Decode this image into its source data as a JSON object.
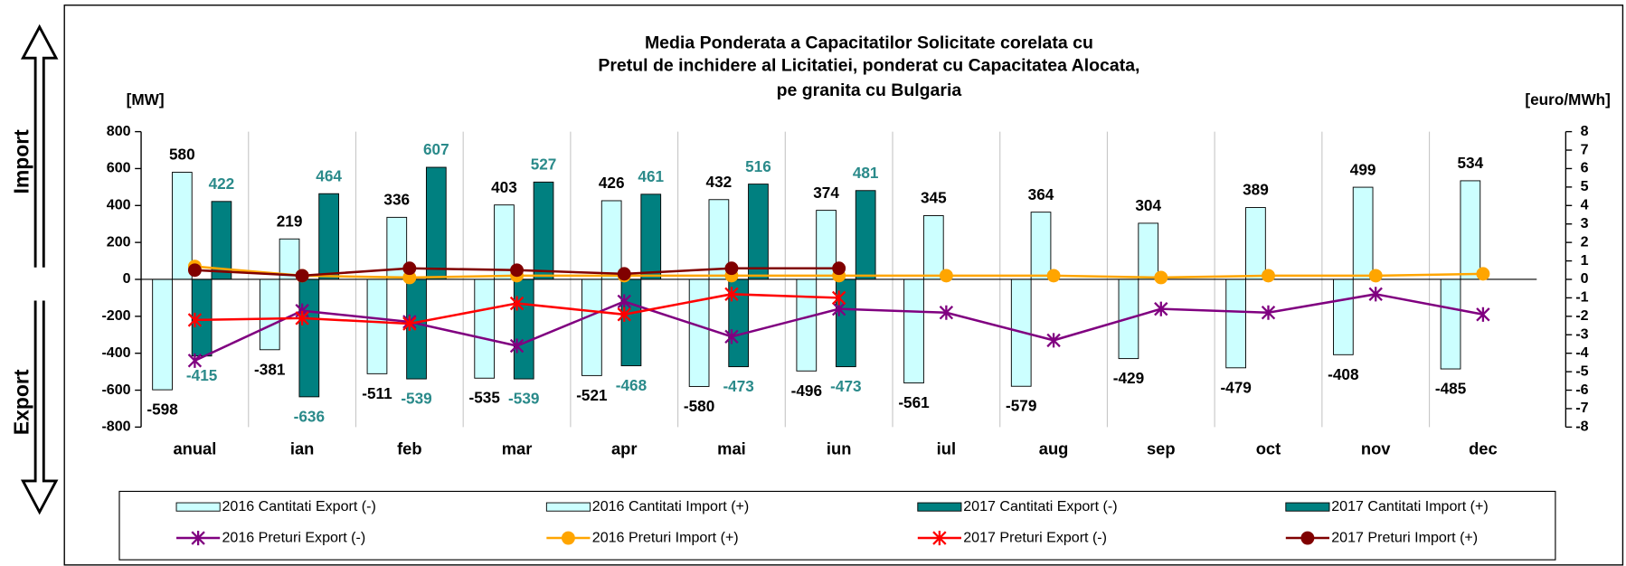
{
  "chart_data": {
    "type": "bar",
    "title": [
      "Media Ponderata a Capacitatilor Solicitate corelata cu",
      "Pretul de inchidere al Licitatiei, ponderat cu Capacitatea Alocata,",
      "pe granita cu Bulgaria"
    ],
    "side_labels": [
      "Import",
      "Export"
    ],
    "y_label": "[MW]",
    "y2_label": "[euro/MWh]",
    "categories": [
      "anual",
      "ian",
      "feb",
      "mar",
      "apr",
      "mai",
      "iun",
      "iul",
      "aug",
      "sep",
      "oct",
      "nov",
      "dec"
    ],
    "ylim": [
      -800,
      800
    ],
    "yticks": [
      -800,
      -600,
      -400,
      -200,
      0,
      200,
      400,
      600,
      800
    ],
    "y2lim": [
      -8,
      8
    ],
    "y2ticks": [
      -8,
      -7,
      -6,
      -5,
      -4,
      -3,
      -2,
      -1,
      0,
      1,
      2,
      3,
      4,
      5,
      6,
      7,
      8
    ],
    "series": [
      {
        "name": "2016 Cantitati Export (-)",
        "type": "bar",
        "color": "#ccffff",
        "label_color": "#000000",
        "values": [
          -598,
          -381,
          -511,
          -535,
          -521,
          -580,
          -496,
          -561,
          -579,
          -429,
          -479,
          -408,
          -485
        ]
      },
      {
        "name": "2016 Cantitati Import (+)",
        "type": "bar",
        "color": "#ccffff",
        "label_color": "#000000",
        "values": [
          580,
          219,
          336,
          403,
          426,
          432,
          374,
          345,
          364,
          304,
          389,
          499,
          534
        ]
      },
      {
        "name": "2017 Cantitati Export (-)",
        "type": "bar",
        "color": "#008080",
        "label_color": "#2a8a8a",
        "values": [
          -415,
          -636,
          -539,
          -539,
          -468,
          -473,
          -473,
          null,
          null,
          null,
          null,
          null,
          null
        ]
      },
      {
        "name": "2017 Cantitati Import (+)",
        "type": "bar",
        "color": "#008080",
        "label_color": "#2a8a8a",
        "values": [
          422,
          464,
          607,
          527,
          461,
          516,
          481,
          null,
          null,
          null,
          null,
          null,
          null
        ]
      },
      {
        "name": "2016 Preturi Export (-)",
        "type": "line",
        "axis": "y2",
        "color": "#800080",
        "marker": "star",
        "values": [
          -4.4,
          -1.7,
          -2.3,
          -3.6,
          -1.2,
          -3.1,
          -1.6,
          -1.8,
          -3.3,
          -1.6,
          -1.8,
          -0.8,
          -1.9
        ]
      },
      {
        "name": "2016 Preturi Import (+)",
        "type": "line",
        "axis": "y2",
        "color": "#ffa500",
        "marker": "circle",
        "values": [
          0.7,
          0.2,
          0.1,
          0.2,
          0.2,
          0.2,
          0.2,
          0.2,
          0.2,
          0.1,
          0.2,
          0.2,
          0.3
        ]
      },
      {
        "name": "2017 Preturi Export (-)",
        "type": "line",
        "axis": "y2",
        "color": "#ff0000",
        "marker": "star",
        "values": [
          -2.2,
          -2.1,
          -2.4,
          -1.3,
          -1.9,
          -0.8,
          -1.0,
          null,
          null,
          null,
          null,
          null,
          null
        ]
      },
      {
        "name": "2017 Preturi Import (+)",
        "type": "line",
        "axis": "y2",
        "color": "#800000",
        "marker": "circle",
        "values": [
          0.5,
          0.2,
          0.6,
          0.5,
          0.3,
          0.6,
          0.6,
          null,
          null,
          null,
          null,
          null,
          null
        ]
      }
    ]
  }
}
